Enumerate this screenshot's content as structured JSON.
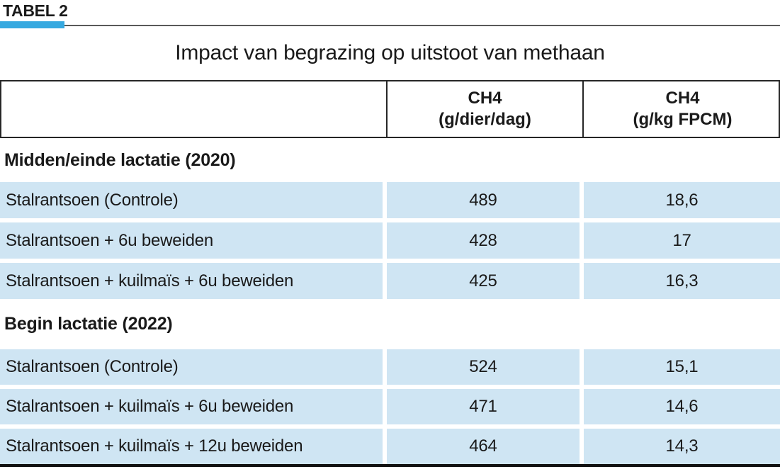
{
  "page": {
    "tag_label": "TABEL 2",
    "title": "Impact van begrazing op uitstoot van methaan"
  },
  "colors": {
    "accent_blue": "#36a9e0",
    "row_blue": "#cfe5f3",
    "border_dark": "#262626",
    "rule_gray": "#595959",
    "bottom_rule_black": "#111111",
    "text": "#1a1a1a"
  },
  "table": {
    "columns": [
      {
        "line1": "",
        "line2": ""
      },
      {
        "line1": "CH4",
        "line2": "(g/dier/dag)"
      },
      {
        "line1": "CH4",
        "line2": "(g/kg FPCM)"
      }
    ],
    "sections": [
      {
        "label": "Midden/einde lactatie (2020)",
        "rows": [
          {
            "label": "Stalrantsoen (Controle)",
            "ch4_day": "489",
            "ch4_fpcm": "18,6"
          },
          {
            "label": "Stalrantsoen + 6u beweiden",
            "ch4_day": "428",
            "ch4_fpcm": "17"
          },
          {
            "label": "Stalrantsoen + kuilmaïs + 6u beweiden",
            "ch4_day": "425",
            "ch4_fpcm": "16,3"
          }
        ]
      },
      {
        "label": "Begin lactatie (2022)",
        "rows": [
          {
            "label": "Stalrantsoen (Controle)",
            "ch4_day": "524",
            "ch4_fpcm": "15,1"
          },
          {
            "label": "Stalrantsoen + kuilmaïs + 6u beweiden",
            "ch4_day": "471",
            "ch4_fpcm": "14,6"
          },
          {
            "label": "Stalrantsoen + kuilmaïs + 12u beweiden",
            "ch4_day": "464",
            "ch4_fpcm": "14,3"
          }
        ]
      }
    ]
  },
  "chart_data": {
    "type": "table",
    "title": "Impact van begrazing op uitstoot van methaan",
    "columns": [
      "",
      "CH4 (g/dier/dag)",
      "CH4 (g/kg FPCM)"
    ],
    "sections": [
      {
        "label": "Midden/einde lactatie (2020)",
        "rows": [
          [
            "Stalrantsoen (Controle)",
            489,
            18.6
          ],
          [
            "Stalrantsoen + 6u beweiden",
            428,
            17
          ],
          [
            "Stalrantsoen + kuilmaïs + 6u beweiden",
            425,
            16.3
          ]
        ]
      },
      {
        "label": "Begin lactatie (2022)",
        "rows": [
          [
            "Stalrantsoen (Controle)",
            524,
            15.1
          ],
          [
            "Stalrantsoen + kuilmaïs + 6u beweiden",
            471,
            14.6
          ],
          [
            "Stalrantsoen + kuilmaïs + 12u beweiden",
            464,
            14.3
          ]
        ]
      }
    ]
  }
}
